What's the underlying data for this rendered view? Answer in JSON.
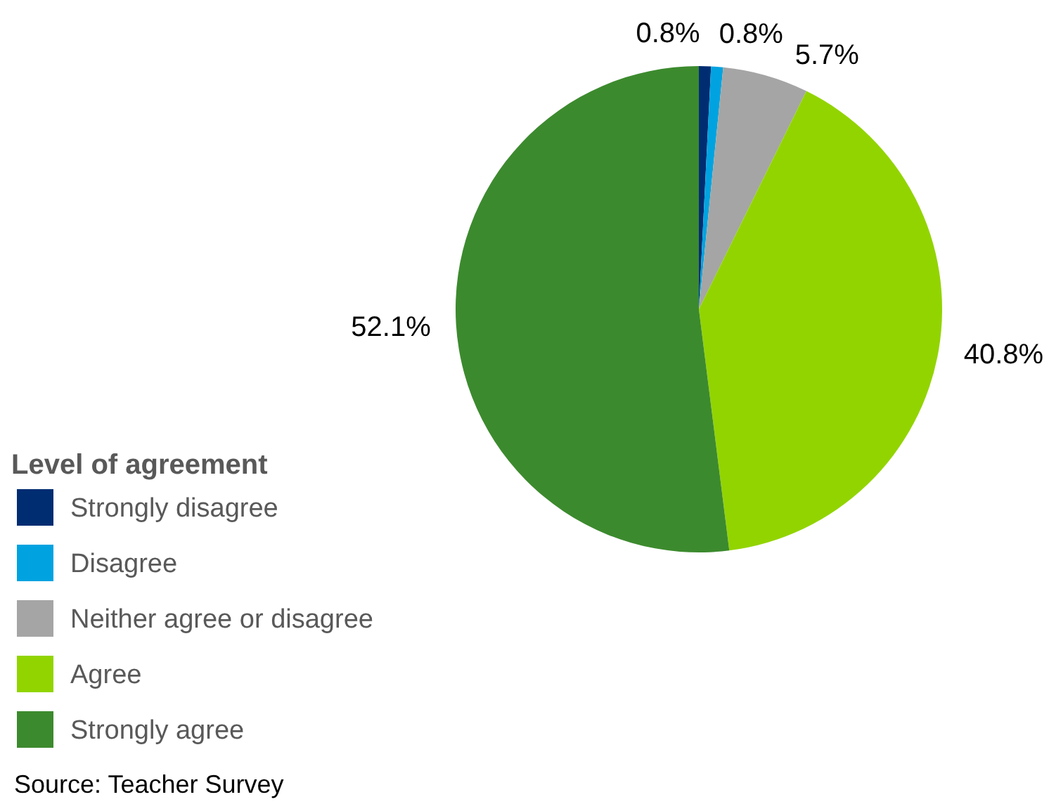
{
  "chart_data": {
    "type": "pie",
    "legend_title": "Level of agreement",
    "categories": [
      "Strongly disagree",
      "Disagree",
      "Neither agree or disagree",
      "Agree",
      "Strongly agree"
    ],
    "values": [
      0.8,
      0.8,
      5.7,
      40.8,
      52.1
    ],
    "colors": [
      "#002d72",
      "#00a3e0",
      "#a5a5a5",
      "#92d400",
      "#3c8a2e"
    ],
    "value_labels": [
      "0.8%",
      "0.8%",
      "5.7%",
      "40.8%",
      "52.1%"
    ],
    "legend": "bottom left",
    "annotations": [
      "Source: Teacher Survey"
    ]
  }
}
